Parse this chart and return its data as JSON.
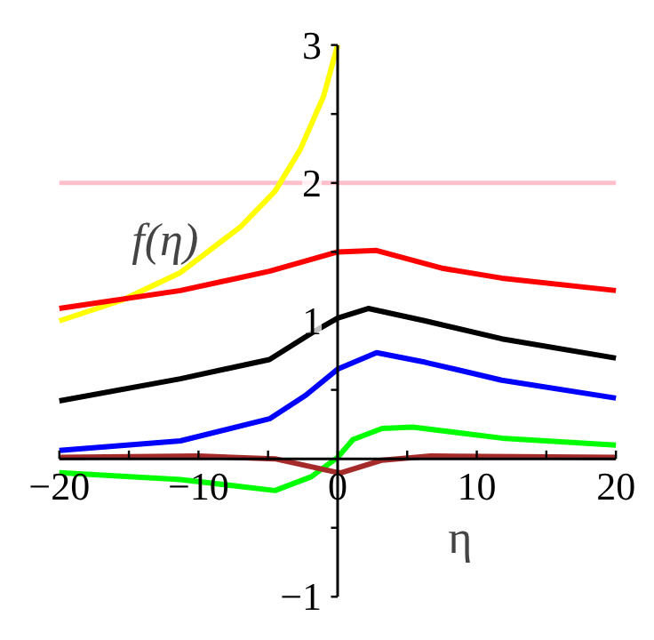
{
  "chart_data": {
    "type": "line",
    "xlabel": "η",
    "ylabel": "f(η)",
    "xlim": [
      -20,
      20
    ],
    "ylim": [
      -1,
      3
    ],
    "xticks": [
      -20,
      {
        "value": -15,
        "label": null
      },
      -10,
      {
        "value": -5,
        "label": null
      },
      0,
      {
        "value": 5,
        "label": null
      },
      10,
      {
        "value": 15,
        "label": null
      },
      20
    ],
    "yticks": [
      -1,
      {
        "value": -0.5,
        "label": null
      },
      {
        "value": 0.5,
        "label": null
      },
      1,
      {
        "value": 1.5,
        "label": null
      },
      2,
      {
        "value": 2.5,
        "label": null
      },
      3
    ],
    "grid": false,
    "line_style": "solid",
    "marker": "none",
    "ref_lines": [
      {
        "axis": "y",
        "value": 2,
        "label": null,
        "color": "#ffc0cb"
      }
    ],
    "series": [
      {
        "color": "#ffff00",
        "x": [
          -20,
          -15.5,
          -11.3,
          -7,
          -4.5,
          -2.7,
          -1,
          0
        ],
        "values": [
          1.0,
          1.15,
          1.35,
          1.68,
          1.94,
          2.24,
          2.63,
          3.0
        ]
      },
      {
        "color": "#ff0000",
        "x": [
          -20,
          -11.3,
          -4.9,
          0,
          2.8,
          7.6,
          11.8,
          20
        ],
        "values": [
          1.09,
          1.22,
          1.36,
          1.5,
          1.51,
          1.38,
          1.31,
          1.22
        ]
      },
      {
        "color": "#000000",
        "x": [
          -20,
          -11.3,
          -4.9,
          -1.9,
          0,
          2.2,
          6.3,
          11.8,
          20
        ],
        "values": [
          0.42,
          0.58,
          0.72,
          0.91,
          1.02,
          1.09,
          1.0,
          0.87,
          0.73
        ]
      },
      {
        "color": "#0000ff",
        "x": [
          -20,
          -11.3,
          -4.9,
          -2.3,
          0,
          2.8,
          6.3,
          11.8,
          20
        ],
        "values": [
          0.06,
          0.13,
          0.29,
          0.46,
          0.65,
          0.77,
          0.7,
          0.57,
          0.44
        ]
      },
      {
        "color": "#00ff00",
        "x": [
          -20,
          -11.3,
          -4.5,
          -1.9,
          0,
          1.1,
          3.2,
          5.4,
          11.8,
          20
        ],
        "values": [
          -0.1,
          -0.15,
          -0.23,
          -0.13,
          0.01,
          0.14,
          0.22,
          0.23,
          0.15,
          0.1
        ]
      },
      {
        "color": "#a52a2a",
        "x": [
          -20,
          -10,
          -4.5,
          0,
          0.3,
          3.2,
          6.7,
          20
        ],
        "values": [
          0.01,
          0.02,
          0.0,
          -0.1,
          -0.1,
          -0.01,
          0.02,
          0.01
        ]
      }
    ]
  }
}
